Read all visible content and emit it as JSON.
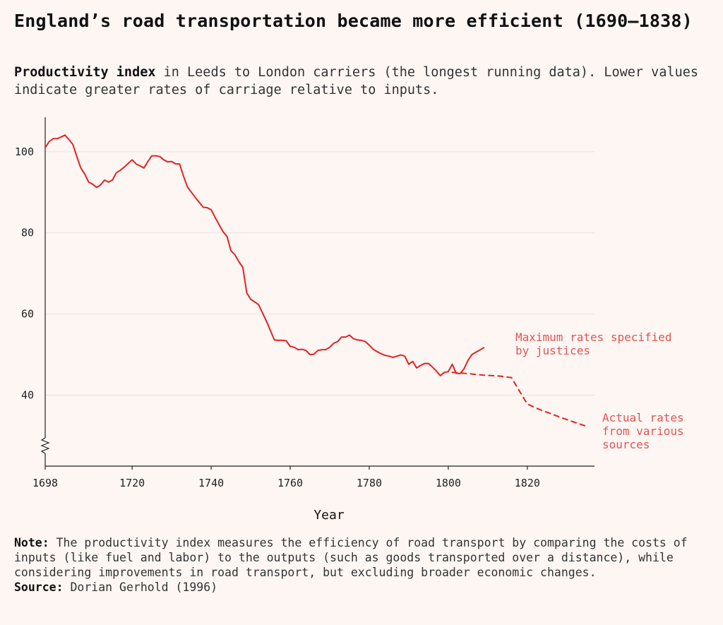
{
  "title": "England’s road transportation became more efficient (1690–1838)",
  "subtitle": {
    "bold": "Productivity index",
    "rest": " in Leeds to London carriers (the longest running data). Lower values indicate greater rates of carriage relative to inputs."
  },
  "note": {
    "label": "Note:",
    "text": " The productivity index measures the efficiency of road transport by comparing the costs of inputs (like fuel and labor) to the outputs (such as goods transported over a distance), while considering improvements in road transport, but excluding broader economic changes."
  },
  "source": {
    "label": "Source:",
    "text": " Dorian Gerhold (1996)"
  },
  "colors": {
    "background": "#fdf6f3",
    "series": "#e32222",
    "annotation": "#e05555",
    "grid": "#ece2de",
    "axis": "#222222"
  },
  "chart_data": {
    "type": "line",
    "xlabel": "Year",
    "ylabel": "",
    "x_ticks": [
      1698,
      1720,
      1740,
      1760,
      1780,
      1800,
      1820
    ],
    "y_ticks": [
      40,
      60,
      80,
      100
    ],
    "xlim": [
      1698,
      1837
    ],
    "ylim": [
      22.5,
      108.5
    ],
    "y_axis_break": true,
    "grid": "horizontal",
    "series": [
      {
        "style": "solid",
        "annotation": [
          "Maximum rates specified",
          "by justices"
        ],
        "points": [
          [
            1698,
            101
          ],
          [
            1699,
            102.5
          ],
          [
            1700,
            103.2
          ],
          [
            1701,
            103.2
          ],
          [
            1702,
            103.6
          ],
          [
            1703,
            104.1
          ],
          [
            1704,
            103
          ],
          [
            1705,
            101.8
          ],
          [
            1706,
            98.8
          ],
          [
            1707,
            96
          ],
          [
            1708,
            94.5
          ],
          [
            1709,
            92.5
          ],
          [
            1710,
            92
          ],
          [
            1711,
            91.2
          ],
          [
            1712,
            91.8
          ],
          [
            1713,
            93
          ],
          [
            1714,
            92.5
          ],
          [
            1715,
            93
          ],
          [
            1716,
            94.8
          ],
          [
            1717,
            95.4
          ],
          [
            1718,
            96.2
          ],
          [
            1719,
            97.1
          ],
          [
            1720,
            98
          ],
          [
            1721,
            97
          ],
          [
            1722,
            96.5
          ],
          [
            1723,
            96
          ],
          [
            1724,
            97.6
          ],
          [
            1725,
            99
          ],
          [
            1726,
            99
          ],
          [
            1727,
            98.8
          ],
          [
            1728,
            98
          ],
          [
            1729,
            97.5
          ],
          [
            1730,
            97.6
          ],
          [
            1731,
            97
          ],
          [
            1732,
            97
          ],
          [
            1733,
            94
          ],
          [
            1734,
            91.3
          ],
          [
            1735,
            90
          ],
          [
            1736,
            88.7
          ],
          [
            1737,
            87.5
          ],
          [
            1738,
            86.3
          ],
          [
            1739,
            86.2
          ],
          [
            1740,
            85.7
          ],
          [
            1741,
            83.8
          ],
          [
            1742,
            82
          ],
          [
            1743,
            80.3
          ],
          [
            1744,
            79.1
          ],
          [
            1745,
            75.6
          ],
          [
            1746,
            74.6
          ],
          [
            1747,
            72.9
          ],
          [
            1748,
            71.5
          ],
          [
            1749,
            65.2
          ],
          [
            1750,
            63.6
          ],
          [
            1751,
            63
          ],
          [
            1752,
            62.3
          ],
          [
            1753,
            60.3
          ],
          [
            1754,
            58.2
          ],
          [
            1755,
            55.9
          ],
          [
            1756,
            53.6
          ],
          [
            1757,
            53.5
          ],
          [
            1758,
            53.5
          ],
          [
            1759,
            53.4
          ],
          [
            1760,
            52
          ],
          [
            1761,
            51.8
          ],
          [
            1762,
            51.2
          ],
          [
            1763,
            51.3
          ],
          [
            1764,
            51
          ],
          [
            1765,
            50
          ],
          [
            1766,
            50.1
          ],
          [
            1767,
            51
          ],
          [
            1768,
            51.2
          ],
          [
            1769,
            51.2
          ],
          [
            1770,
            51.8
          ],
          [
            1771,
            52.8
          ],
          [
            1772,
            53.2
          ],
          [
            1773,
            54.3
          ],
          [
            1774,
            54.3
          ],
          [
            1775,
            54.8
          ],
          [
            1776,
            53.9
          ],
          [
            1777,
            53.6
          ],
          [
            1778,
            53.5
          ],
          [
            1779,
            53.2
          ],
          [
            1780,
            52.3
          ],
          [
            1781,
            51.3
          ],
          [
            1782,
            50.7
          ],
          [
            1783,
            50.2
          ],
          [
            1784,
            49.8
          ],
          [
            1785,
            49.6
          ],
          [
            1786,
            49.3
          ],
          [
            1787,
            49.6
          ],
          [
            1788,
            49.9
          ],
          [
            1789,
            49.6
          ],
          [
            1790,
            47.6
          ],
          [
            1791,
            48.3
          ],
          [
            1792,
            46.7
          ],
          [
            1793,
            47.3
          ],
          [
            1794,
            47.8
          ],
          [
            1795,
            47.8
          ],
          [
            1796,
            46.9
          ],
          [
            1797,
            45.9
          ],
          [
            1798,
            44.8
          ],
          [
            1799,
            45.6
          ],
          [
            1800,
            45.8
          ],
          [
            1801,
            47.6
          ],
          [
            1802,
            45.4
          ],
          [
            1803,
            45.3
          ],
          [
            1804,
            46.5
          ],
          [
            1805,
            48.6
          ],
          [
            1806,
            50
          ],
          [
            1807,
            50.6
          ],
          [
            1808,
            51.1
          ],
          [
            1809,
            51.7
          ]
        ]
      },
      {
        "style": "dashed",
        "annotation": [
          "Actual rates",
          "from various",
          "sources"
        ],
        "points": [
          [
            1801,
            45.6
          ],
          [
            1805,
            45.3
          ],
          [
            1809,
            44.9
          ],
          [
            1813,
            44.7
          ],
          [
            1816,
            44.3
          ],
          [
            1818,
            41
          ],
          [
            1820,
            37.8
          ],
          [
            1823,
            36.5
          ],
          [
            1826,
            35.4
          ],
          [
            1829,
            34.3
          ],
          [
            1832,
            33.3
          ],
          [
            1835,
            32.3
          ]
        ]
      }
    ]
  }
}
